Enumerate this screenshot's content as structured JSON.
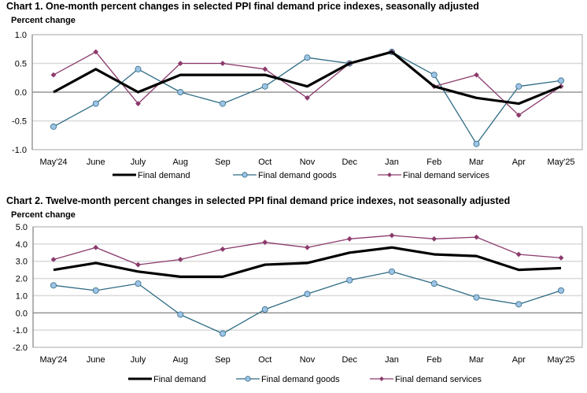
{
  "chart_data": [
    {
      "type": "line",
      "title": "Chart 1. One-month percent changes in selected PPI final demand price indexes, seasonally adjusted",
      "xlabel": "",
      "ylabel": "Percent change",
      "ylim": [
        -1.0,
        1.0
      ],
      "yticks": [
        "1.0",
        "0.5",
        "0.0",
        "-0.5",
        "-1.0"
      ],
      "ytick_values": [
        1.0,
        0.5,
        0.0,
        -0.5,
        -1.0
      ],
      "grid": true,
      "legend_position": "bottom",
      "categories": [
        "May'24",
        "June",
        "July",
        "Aug",
        "Sep",
        "Oct",
        "Nov",
        "Dec",
        "Jan",
        "Feb",
        "Mar",
        "Apr",
        "May'25"
      ],
      "series": [
        {
          "name": "Final demand",
          "color": "#000000",
          "marker": "none",
          "values": [
            0.0,
            0.4,
            0.0,
            0.3,
            0.3,
            0.3,
            0.1,
            0.5,
            0.7,
            0.1,
            -0.1,
            -0.2,
            0.1
          ]
        },
        {
          "name": "Final demand goods",
          "color": "#2E6B84",
          "marker_fill": "#9DC3E6",
          "marker": "circle",
          "values": [
            -0.6,
            -0.2,
            0.4,
            0.0,
            -0.2,
            0.1,
            0.6,
            0.5,
            0.7,
            0.3,
            -0.9,
            0.1,
            0.2
          ]
        },
        {
          "name": "Final demand services",
          "color": "#8B3A6B",
          "marker": "diamond",
          "values": [
            0.3,
            0.7,
            -0.2,
            0.5,
            0.5,
            0.4,
            -0.1,
            0.5,
            0.7,
            0.1,
            0.3,
            -0.4,
            0.1
          ]
        }
      ]
    },
    {
      "type": "line",
      "title": "Chart 2. Twelve-month percent changes in selected PPI final demand price indexes, not seasonally adjusted",
      "xlabel": "",
      "ylabel": "Percent change",
      "ylim": [
        -2.0,
        5.0
      ],
      "yticks": [
        "5.0",
        "4.0",
        "3.0",
        "2.0",
        "1.0",
        "0.0",
        "-1.0",
        "-2.0"
      ],
      "ytick_values": [
        5.0,
        4.0,
        3.0,
        2.0,
        1.0,
        0.0,
        -1.0,
        -2.0
      ],
      "grid": true,
      "legend_position": "bottom",
      "categories": [
        "May'24",
        "June",
        "July",
        "Aug",
        "Sep",
        "Oct",
        "Nov",
        "Dec",
        "Jan",
        "Feb",
        "Mar",
        "Apr",
        "May'25"
      ],
      "series": [
        {
          "name": "Final demand",
          "color": "#000000",
          "marker": "none",
          "values": [
            2.5,
            2.9,
            2.4,
            2.1,
            2.1,
            2.8,
            2.9,
            3.5,
            3.8,
            3.4,
            3.3,
            2.5,
            2.6
          ]
        },
        {
          "name": "Final demand goods",
          "color": "#2E6B84",
          "marker_fill": "#9DC3E6",
          "marker": "circle",
          "values": [
            1.6,
            1.3,
            1.7,
            -0.1,
            -1.2,
            0.2,
            1.1,
            1.9,
            2.4,
            1.7,
            0.9,
            0.5,
            1.3
          ]
        },
        {
          "name": "Final demand services",
          "color": "#8B3A6B",
          "marker": "diamond",
          "values": [
            3.1,
            3.8,
            2.8,
            3.1,
            3.7,
            4.1,
            3.8,
            4.3,
            4.5,
            4.3,
            4.4,
            3.4,
            3.2
          ]
        }
      ]
    }
  ]
}
